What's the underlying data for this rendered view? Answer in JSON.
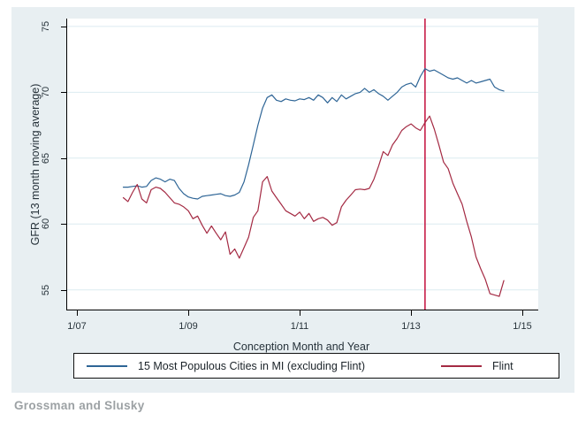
{
  "caption": "Grossman and Slusky",
  "colors": {
    "figure_background": "#e8eff2",
    "plot_background": "#ffffff",
    "gridline": "#dcebf0",
    "axis": "#000000",
    "cities_line": "#2e6596",
    "flint_line": "#a42a43",
    "vline": "#c40d3c"
  },
  "legend": {
    "items": [
      {
        "label": "15 Most Populous Cities in MI (excluding Flint)",
        "color": "#2e6596"
      },
      {
        "label": "Flint",
        "color": "#a42a43"
      }
    ]
  },
  "chart_data": {
    "type": "line",
    "title": "",
    "xlabel": "Conception Month and Year",
    "ylabel": "GFR (13 month moving average)",
    "x_axis": {
      "unit": "months since January 2007",
      "range": [
        -2.1,
        99.4
      ],
      "ticks": [
        {
          "label": "1/07",
          "month": 0
        },
        {
          "label": "1/09",
          "month": 24
        },
        {
          "label": "1/11",
          "month": 48
        },
        {
          "label": "1/13",
          "month": 72
        },
        {
          "label": "1/15",
          "month": 96
        }
      ]
    },
    "y_axis": {
      "range": [
        53.5,
        75.6
      ],
      "ticks": [
        55,
        60,
        65,
        70,
        75
      ],
      "gridlines": true
    },
    "vline": {
      "month": 75,
      "month_label": "4/13",
      "color": "#c40d3c"
    },
    "series_start_month": 10,
    "series_start_label": "11/07",
    "series_end_label": "9/14",
    "series": [
      {
        "name": "15 Most Populous Cities in MI (excluding Flint)",
        "color": "#2e6596",
        "values": [
          62.8,
          62.8,
          62.85,
          62.9,
          62.8,
          62.85,
          63.3,
          63.5,
          63.4,
          63.2,
          63.4,
          63.3,
          62.7,
          62.3,
          62.05,
          61.95,
          61.9,
          62.1,
          62.15,
          62.2,
          62.25,
          62.3,
          62.15,
          62.1,
          62.2,
          62.4,
          63.2,
          64.5,
          66.0,
          67.5,
          68.8,
          69.6,
          69.8,
          69.4,
          69.3,
          69.5,
          69.4,
          69.35,
          69.5,
          69.45,
          69.6,
          69.4,
          69.8,
          69.6,
          69.2,
          69.6,
          69.3,
          69.8,
          69.5,
          69.7,
          69.9,
          70.0,
          70.3,
          70.0,
          70.2,
          69.9,
          69.7,
          69.4,
          69.7,
          70.0,
          70.4,
          70.6,
          70.7,
          70.4,
          71.2,
          71.8,
          71.6,
          71.7,
          71.5,
          71.3,
          71.1,
          71.0,
          71.1,
          70.9,
          70.7,
          70.9,
          70.7,
          70.8,
          70.9,
          71.0,
          70.4,
          70.2,
          70.1
        ]
      },
      {
        "name": "Flint",
        "color": "#a42a43",
        "values": [
          62.0,
          61.7,
          62.4,
          63.0,
          61.9,
          61.6,
          62.6,
          62.8,
          62.7,
          62.4,
          62.0,
          61.6,
          61.5,
          61.3,
          61.0,
          60.4,
          60.6,
          59.9,
          59.3,
          59.85,
          59.3,
          58.8,
          59.4,
          57.7,
          58.1,
          57.4,
          58.2,
          59.0,
          60.5,
          61.0,
          63.2,
          63.6,
          62.5,
          62.0,
          61.5,
          61.0,
          60.8,
          60.6,
          60.9,
          60.4,
          60.8,
          60.2,
          60.4,
          60.5,
          60.3,
          59.9,
          60.1,
          61.3,
          61.8,
          62.2,
          62.6,
          62.65,
          62.6,
          62.7,
          63.4,
          64.4,
          65.5,
          65.2,
          66.0,
          66.5,
          67.1,
          67.4,
          67.6,
          67.3,
          67.1,
          67.7,
          68.2,
          67.2,
          66.0,
          64.7,
          64.2,
          63.1,
          62.3,
          61.5,
          60.2,
          59.0,
          57.5,
          56.6,
          55.8,
          54.7,
          54.6,
          54.5,
          55.7
        ]
      }
    ]
  }
}
